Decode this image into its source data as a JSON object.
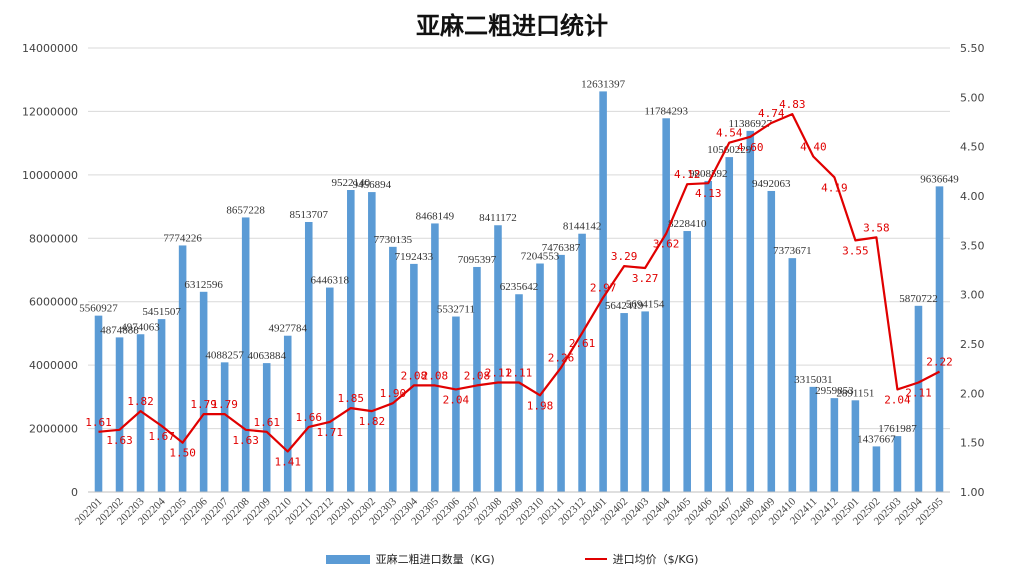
{
  "chart_data": {
    "type": "bar+line",
    "title": "亚麻二粗进口统计",
    "categories": [
      "202201",
      "202202",
      "202203",
      "202204",
      "202205",
      "202206",
      "202207",
      "202208",
      "202209",
      "202210",
      "202211",
      "202212",
      "202301",
      "202302",
      "202303",
      "202304",
      "202305",
      "202306",
      "202307",
      "202308",
      "202309",
      "202310",
      "202311",
      "202312",
      "202401",
      "202402",
      "202403",
      "202404",
      "202405",
      "202406",
      "202407",
      "202408",
      "202409",
      "202410",
      "202411",
      "202412",
      "202501",
      "202502",
      "202503",
      "202504",
      "202505"
    ],
    "series": [
      {
        "name": "亚麻二粗进口数量（KG)",
        "type": "bar",
        "axis": "left",
        "color": "#5b9bd5",
        "values": [
          5560927,
          4874888,
          4974063,
          5451507,
          7774226,
          6312596,
          4088257,
          8657228,
          4063884,
          4927784,
          8513707,
          6446318,
          9522140,
          9456894,
          7730135,
          7192433,
          8468149,
          5532711,
          7095397,
          8411172,
          6235642,
          7204553,
          7476387,
          8144142,
          12631397,
          5642419,
          5694154,
          11784293,
          8228410,
          9808592,
          10560229,
          11386927,
          9492063,
          7373671,
          3315031,
          2959853,
          2891151,
          1437667,
          1761987,
          5870722,
          9636649
        ],
        "labels": [
          "5560927",
          "4874888",
          "4974063",
          "5451507",
          "7774226",
          "6312596",
          "4088257",
          "8657228",
          "4063884",
          "4927784",
          "8513707",
          "6446318",
          "9522140",
          "9456894",
          "7730135",
          "7192433",
          "8468149",
          "5532711",
          "7095397",
          "8411172",
          "6235642",
          "7204553",
          "7476387",
          "8144142",
          "12631397",
          "5642419",
          "5694154",
          "11784293",
          "8228410",
          "9808592",
          "10560229",
          "11386927",
          "9492063",
          "7373671",
          "3315031",
          "2959853",
          "2891151",
          "1437667",
          "1761987",
          "5870722",
          "9636649"
        ]
      },
      {
        "name": "进口均价（$/KG)",
        "type": "line",
        "axis": "right",
        "color": "#e00000",
        "values": [
          1.61,
          1.63,
          1.82,
          1.67,
          1.5,
          1.79,
          1.79,
          1.63,
          1.61,
          1.41,
          1.66,
          1.71,
          1.85,
          1.82,
          1.9,
          2.08,
          2.08,
          2.04,
          2.08,
          2.11,
          2.11,
          1.98,
          2.26,
          2.61,
          2.97,
          3.29,
          3.27,
          3.62,
          4.12,
          4.13,
          4.54,
          4.6,
          4.74,
          4.83,
          4.4,
          4.19,
          3.55,
          3.58,
          2.04,
          2.11,
          2.22
        ],
        "labels": [
          "1.61",
          "1.63",
          "1.82",
          "1.67",
          "1.50",
          "1.79",
          "1.79",
          "1.63",
          "1.61",
          "1.41",
          "1.66",
          "1.71",
          "1.85",
          "1.82",
          "1.90",
          "2.08",
          "2.08",
          "2.04",
          "2.08",
          "2.11",
          "2.11",
          "1.98",
          "2.26",
          "2.61",
          "2.97",
          "3.29",
          "3.27",
          "3.62",
          "4.12",
          "4.13",
          "4.54",
          "4.60",
          "4.74",
          "4.83",
          "4.40",
          "4.19",
          "3.55",
          "3.58",
          "2.04",
          "2.11",
          "2.22"
        ]
      }
    ],
    "left_axis": {
      "min": 0,
      "max": 14000000,
      "ticks": [
        "0",
        "2000000",
        "4000000",
        "6000000",
        "8000000",
        "10000000",
        "12000000",
        "14000000"
      ]
    },
    "right_axis": {
      "min": 1.0,
      "max": 5.5,
      "ticks": [
        "1.00",
        "1.50",
        "2.00",
        "2.50",
        "3.00",
        "3.50",
        "4.00",
        "4.50",
        "5.00",
        "5.50"
      ]
    },
    "grid": true,
    "legend_position": "bottom"
  }
}
